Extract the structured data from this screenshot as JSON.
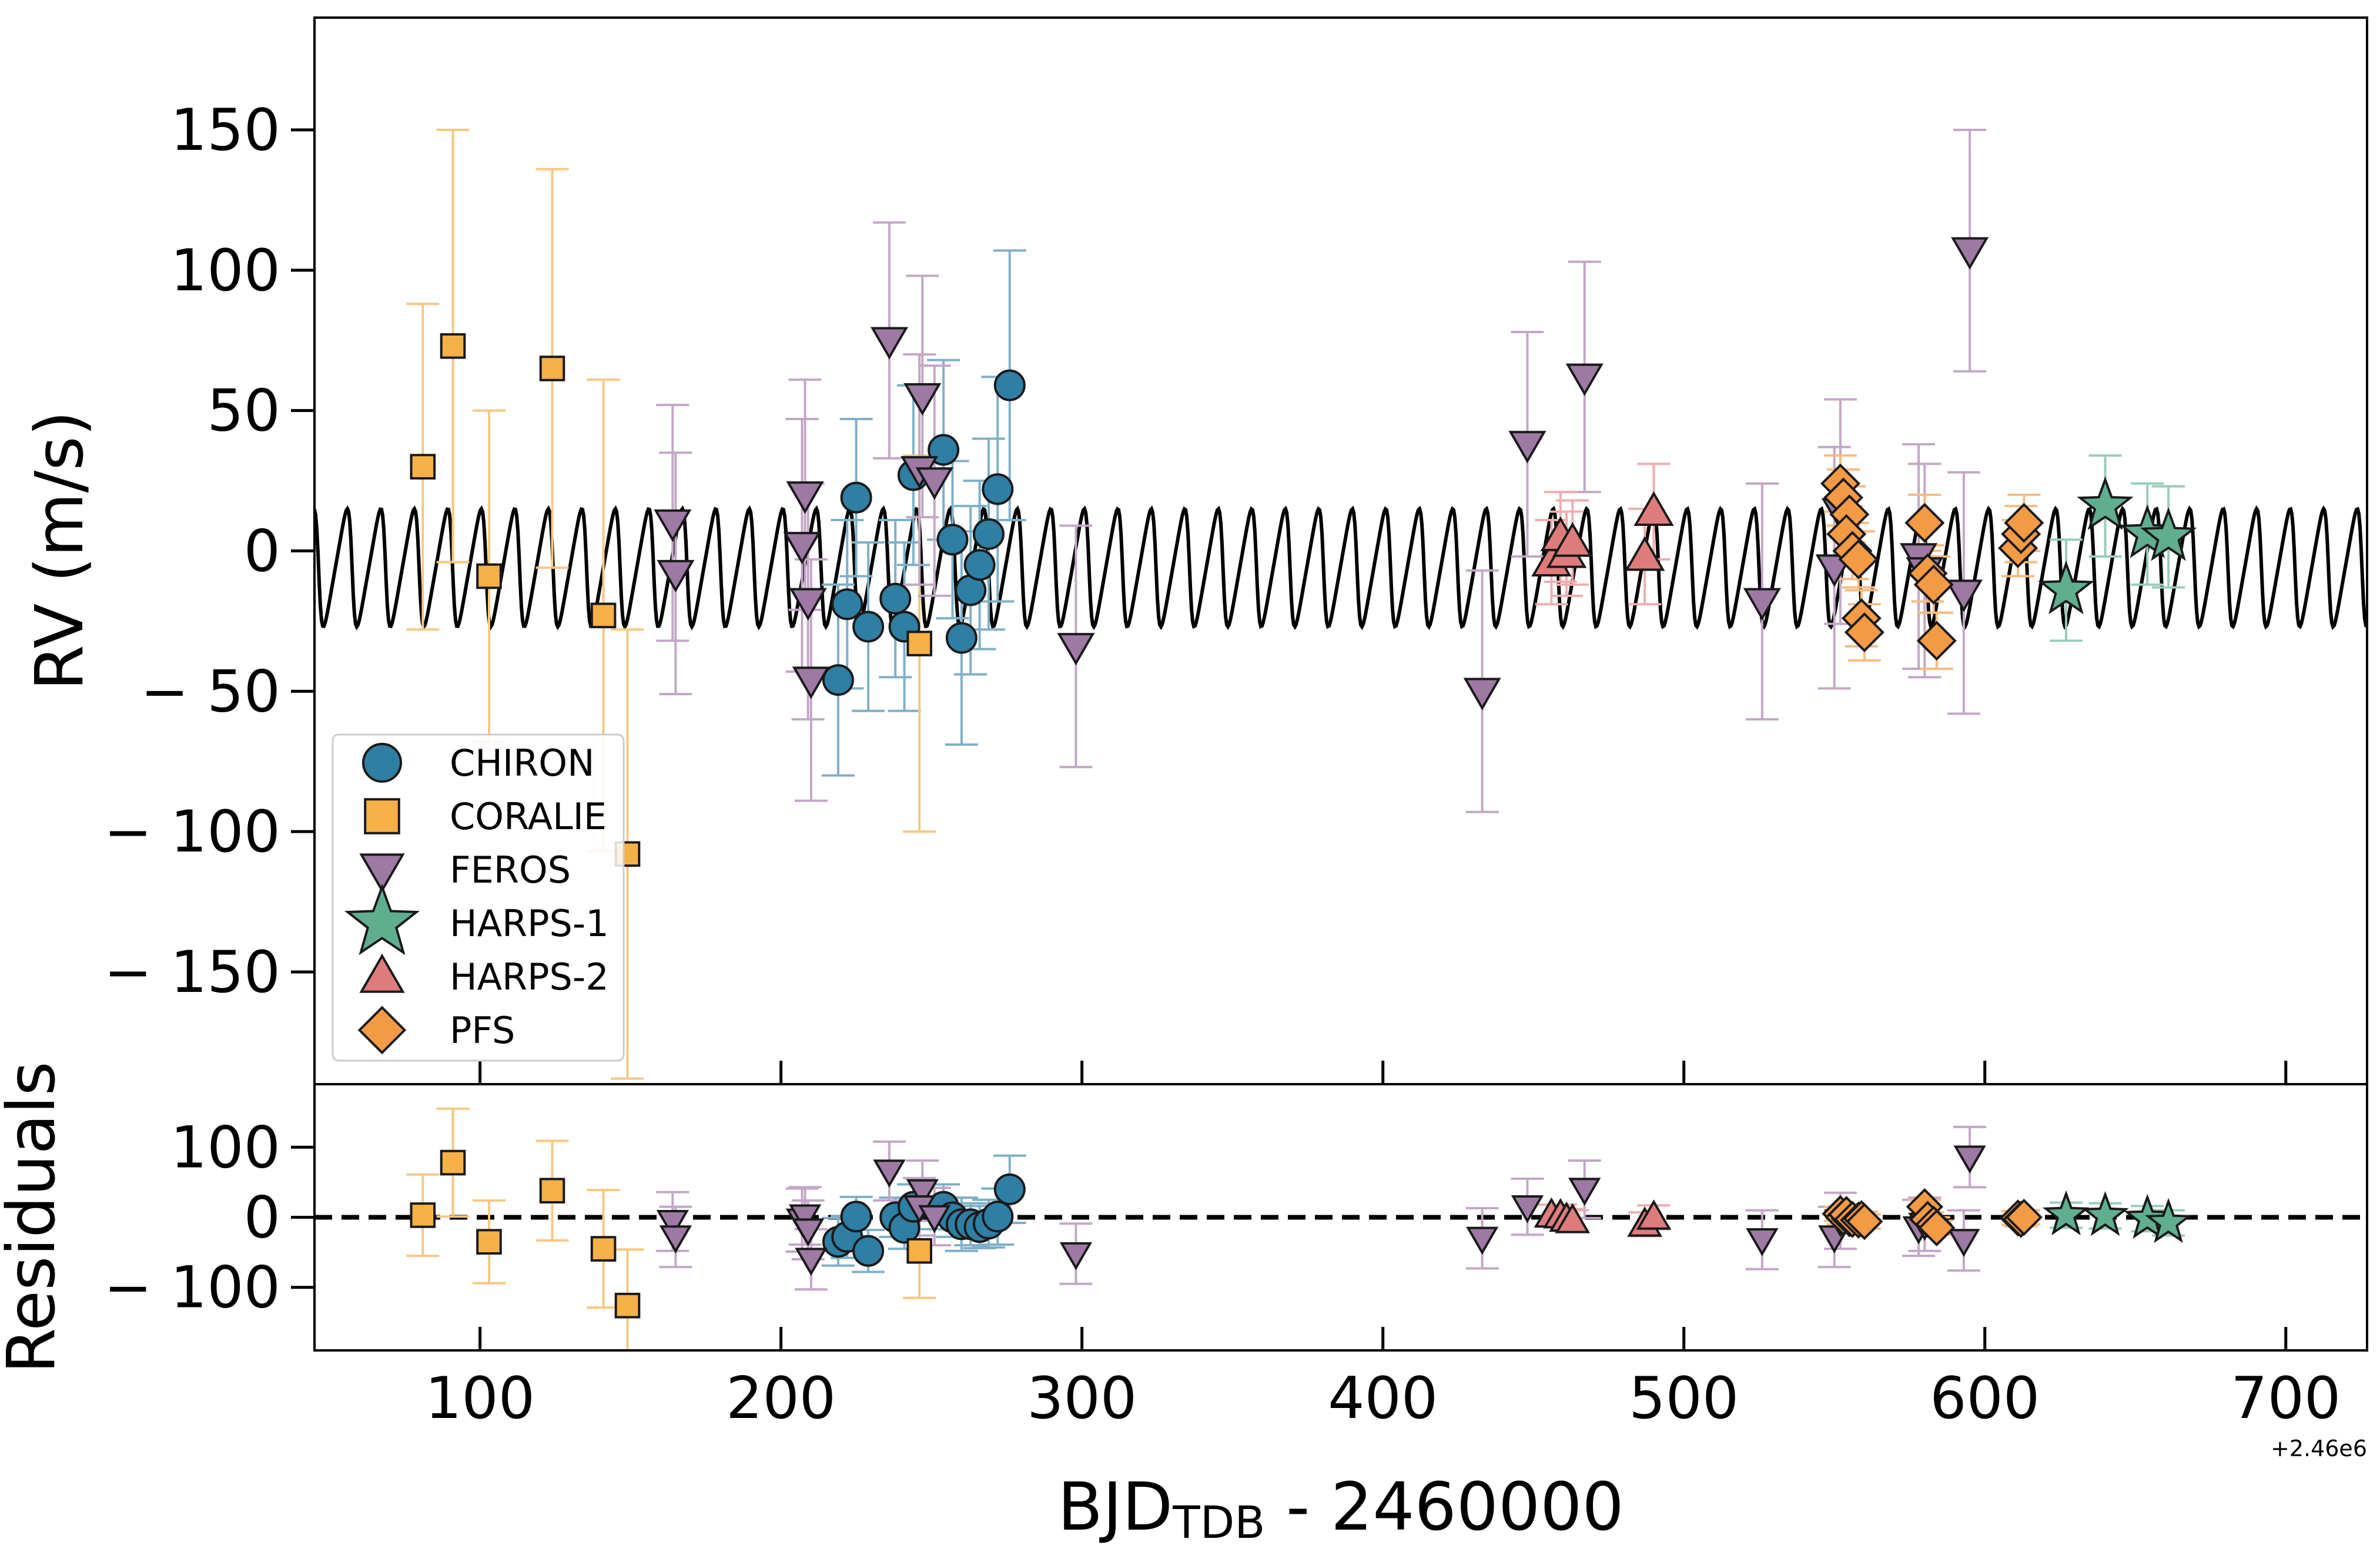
{
  "chart_data": {
    "type": "scatter",
    "description_free": true,
    "xlabel": "BJD",
    "xlabel_sub": "TDB",
    "xlabel_rest": " - 2460000",
    "x_offset_label": "+2.46e6",
    "xlim": [
      45,
      727
    ],
    "x_ticks": [
      100,
      200,
      300,
      400,
      500,
      600,
      700
    ],
    "x_tick_labels": [
      "100",
      "200",
      "300",
      "400",
      "500",
      "600",
      "700"
    ],
    "top_panel": {
      "ylabel": "RV (m/s)",
      "ylim": [
        -190,
        190
      ],
      "y_ticks": [
        150,
        100,
        50,
        0,
        -50,
        -100,
        -150
      ],
      "y_tick_labels": [
        "150",
        "100",
        "50",
        "0",
        "− 50",
        "− 100",
        "− 150"
      ]
    },
    "bottom_panel": {
      "ylabel": "Residuals",
      "ylim": [
        -190,
        190
      ],
      "y_ticks": [
        100,
        0,
        -100
      ],
      "y_tick_labels": [
        "100",
        "0",
        "− 100"
      ],
      "zero_line": "dashed"
    },
    "model": {
      "type": "keplerian",
      "period": 11.13,
      "t0": 57.5,
      "semi_amplitude": 21,
      "offset": -6,
      "eccentricity": 0.35,
      "omega_deg": 90
    },
    "legend": {
      "placement": "lower-left",
      "entries": [
        "CHIRON",
        "CORALIE",
        "FEROS",
        "HARPS-1",
        "HARPS-2",
        "PFS"
      ]
    },
    "series": [
      {
        "name": "CHIRON",
        "marker": "circle",
        "fill": "#2f7ea3",
        "errcolor": "#7fb0c8",
        "points": [
          {
            "x": 219,
            "y": -46,
            "err": 34,
            "res": -35
          },
          {
            "x": 222,
            "y": -19,
            "err": 30,
            "res": -28
          },
          {
            "x": 225,
            "y": 19,
            "err": 28,
            "res": 1
          },
          {
            "x": 229,
            "y": -27,
            "err": 30,
            "res": -48
          },
          {
            "x": 238,
            "y": -17,
            "err": 28,
            "res": 0
          },
          {
            "x": 241,
            "y": -27,
            "err": 30,
            "res": -15
          },
          {
            "x": 244,
            "y": 27,
            "err": 32,
            "res": 15
          },
          {
            "x": 254,
            "y": 36,
            "err": 32,
            "res": 15
          },
          {
            "x": 257,
            "y": 4,
            "err": 28,
            "res": 0
          },
          {
            "x": 260,
            "y": -31,
            "err": 38,
            "res": -10
          },
          {
            "x": 263,
            "y": -14,
            "err": 30,
            "res": -10
          },
          {
            "x": 266,
            "y": -5,
            "err": 30,
            "res": -14
          },
          {
            "x": 269,
            "y": 6,
            "err": 34,
            "res": -9
          },
          {
            "x": 272,
            "y": 22,
            "err": 40,
            "res": 1
          },
          {
            "x": 276,
            "y": 59,
            "err": 48,
            "res": 40
          }
        ]
      },
      {
        "name": "CORALIE",
        "marker": "square",
        "fill": "#f6b048",
        "errcolor": "#f6c882",
        "points": [
          {
            "x": 81,
            "y": 30,
            "err": 58,
            "res": 3
          },
          {
            "x": 91,
            "y": 73,
            "err": 77,
            "res": 78
          },
          {
            "x": 103,
            "y": -9,
            "err": 59,
            "res": -35
          },
          {
            "x": 124,
            "y": 65,
            "err": 71,
            "res": 38
          },
          {
            "x": 141,
            "y": -23,
            "err": 84,
            "res": -45
          },
          {
            "x": 149,
            "y": -108,
            "err": 80,
            "res": -126
          },
          {
            "x": 246,
            "y": -33,
            "err": 67,
            "res": -48
          }
        ]
      },
      {
        "name": "FEROS",
        "marker": "triangle-down",
        "fill": "#9d79a4",
        "errcolor": "#c3a7c6",
        "points": [
          {
            "x": 164,
            "y": 10,
            "err": 42,
            "res": -6
          },
          {
            "x": 165,
            "y": -8,
            "err": 43,
            "res": -28
          },
          {
            "x": 207,
            "y": 2,
            "err": 45,
            "res": -4
          },
          {
            "x": 208,
            "y": 20,
            "err": 41,
            "res": 2
          },
          {
            "x": 209,
            "y": -18,
            "err": 42,
            "res": -18
          },
          {
            "x": 210,
            "y": -46,
            "err": 43,
            "res": -60
          },
          {
            "x": 236,
            "y": 75,
            "err": 42,
            "res": 66
          },
          {
            "x": 247,
            "y": 55,
            "err": 43,
            "res": 38
          },
          {
            "x": 246,
            "y": 29,
            "err": 41,
            "res": 15
          },
          {
            "x": 251,
            "y": 25,
            "err": 41,
            "res": 1
          },
          {
            "x": 298,
            "y": -34,
            "err": 43,
            "res": -52
          },
          {
            "x": 433,
            "y": -50,
            "err": 43,
            "res": -30
          },
          {
            "x": 448,
            "y": 38,
            "err": 40,
            "res": 15
          },
          {
            "x": 467,
            "y": 62,
            "err": 41,
            "res": 40
          },
          {
            "x": 526,
            "y": -18,
            "err": 42,
            "res": -32
          },
          {
            "x": 550,
            "y": -6,
            "err": 43,
            "res": -28
          },
          {
            "x": 552,
            "y": 14,
            "err": 40,
            "res": -5
          },
          {
            "x": 578,
            "y": -2,
            "err": 40,
            "res": -15
          },
          {
            "x": 580,
            "y": -7,
            "err": 38,
            "res": -10
          },
          {
            "x": 593,
            "y": -15,
            "err": 43,
            "res": -33
          },
          {
            "x": 595,
            "y": 107,
            "err": 43,
            "res": 86
          }
        ]
      },
      {
        "name": "HARPS-1",
        "marker": "star",
        "fill": "#5faf8f",
        "errcolor": "#99cdb8",
        "points": [
          {
            "x": 627,
            "y": -14,
            "err": 18,
            "res": 3
          },
          {
            "x": 640,
            "y": 16,
            "err": 18,
            "res": 2
          },
          {
            "x": 654,
            "y": 6,
            "err": 18,
            "res": -2
          },
          {
            "x": 661,
            "y": 5,
            "err": 18,
            "res": -8
          }
        ]
      },
      {
        "name": "HARPS-2",
        "marker": "triangle-up",
        "fill": "#de7c7c",
        "errcolor": "#eeaeae",
        "points": [
          {
            "x": 456,
            "y": -4,
            "err": 15,
            "res": 3
          },
          {
            "x": 459,
            "y": 5,
            "err": 16,
            "res": 2
          },
          {
            "x": 461,
            "y": -1,
            "err": 15,
            "res": -3
          },
          {
            "x": 463,
            "y": 3,
            "err": 15,
            "res": -5
          },
          {
            "x": 487,
            "y": -2,
            "err": 17,
            "res": -10
          },
          {
            "x": 490,
            "y": 14,
            "err": 17,
            "res": 0
          }
        ]
      },
      {
        "name": "PFS",
        "marker": "diamond",
        "fill": "#f39a45",
        "errcolor": "#f6bc82",
        "points": [
          {
            "x": 552,
            "y": 24,
            "err": 10,
            "res": 5
          },
          {
            "x": 553,
            "y": 19,
            "err": 10,
            "res": 0
          },
          {
            "x": 555,
            "y": 13,
            "err": 10,
            "res": -2
          },
          {
            "x": 554,
            "y": 6,
            "err": 10,
            "res": 4
          },
          {
            "x": 556,
            "y": 0,
            "err": 10,
            "res": -3
          },
          {
            "x": 558,
            "y": -3,
            "err": 10,
            "res": -4
          },
          {
            "x": 559,
            "y": -24,
            "err": 10,
            "res": -2
          },
          {
            "x": 560,
            "y": -29,
            "err": 10,
            "res": -6
          },
          {
            "x": 580,
            "y": 10,
            "err": 10,
            "res": 15
          },
          {
            "x": 581,
            "y": -8,
            "err": 10,
            "res": -3
          },
          {
            "x": 583,
            "y": -12,
            "err": 10,
            "res": -10
          },
          {
            "x": 584,
            "y": -32,
            "err": 10,
            "res": -15
          },
          {
            "x": 611,
            "y": 1,
            "err": 10,
            "res": -1
          },
          {
            "x": 612,
            "y": 6,
            "err": 10,
            "res": -3
          },
          {
            "x": 613,
            "y": 10,
            "err": 10,
            "res": 0
          }
        ]
      }
    ]
  }
}
